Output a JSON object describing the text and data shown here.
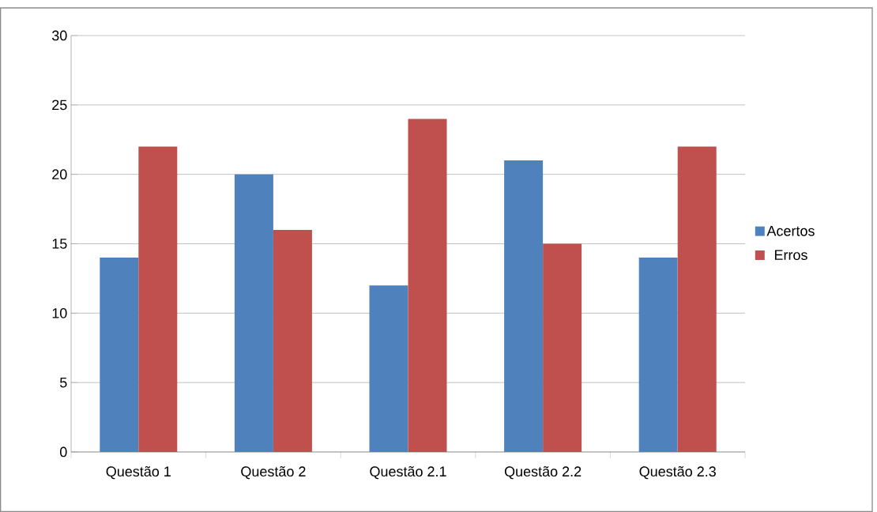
{
  "chart_data": {
    "type": "bar",
    "categories": [
      "Questão 1",
      "Questão 2",
      "Questão 2.1",
      "Questão 2.2",
      "Questão 2.3"
    ],
    "series": [
      {
        "name": "Acertos",
        "color": "#4f81bd",
        "values": [
          14,
          20,
          12,
          21,
          14
        ]
      },
      {
        "name": "Erros",
        "color": "#c0504d",
        "values": [
          22,
          16,
          24,
          15,
          22
        ]
      }
    ],
    "ylim": [
      0,
      30
    ],
    "yticks": [
      0,
      5,
      10,
      15,
      20,
      25,
      30
    ],
    "grid": "y",
    "legend": "right"
  }
}
